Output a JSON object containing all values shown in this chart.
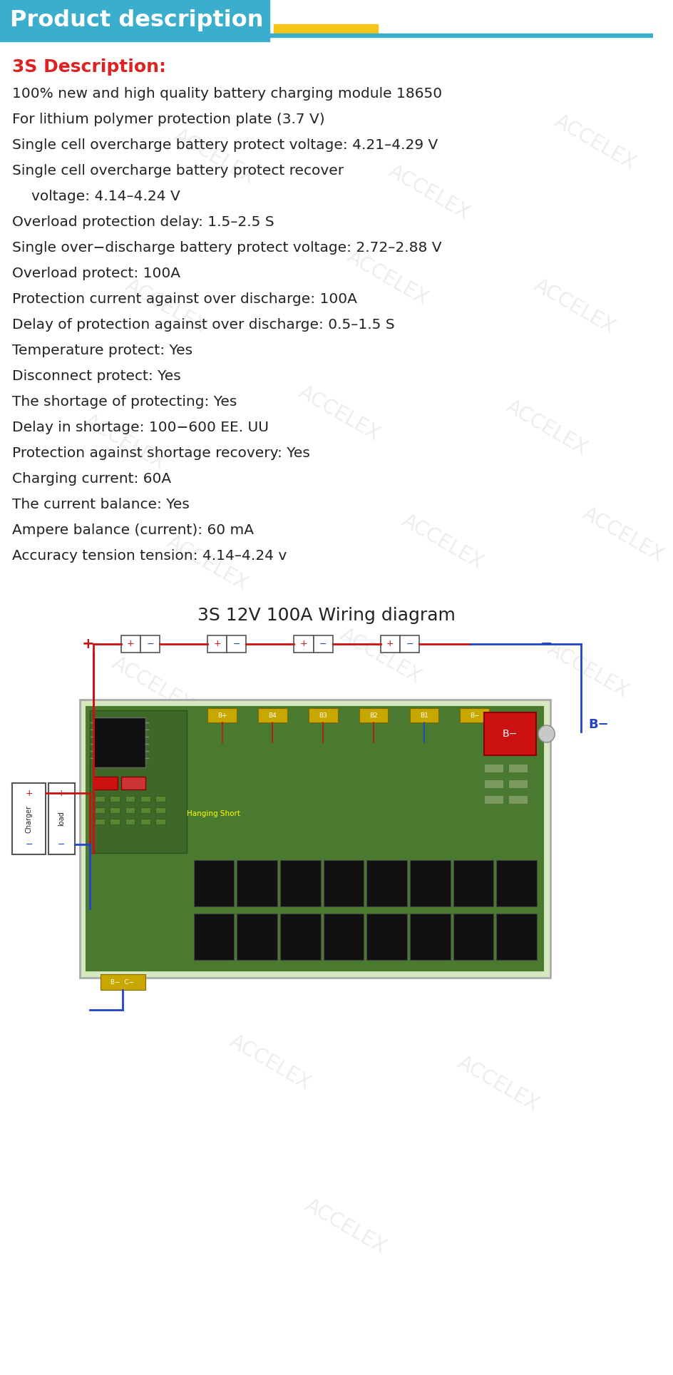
{
  "title_text": "Product description",
  "title_bg_color": "#3aaecc",
  "title_text_color": "#ffffff",
  "yellow_bar_color": "#f5c518",
  "blue_line_color": "#3aaecc",
  "section_title": "3S Description:",
  "section_title_color": "#dd2222",
  "description_lines": [
    "100% new and high quality battery charging module 18650",
    "For lithium polymer protection plate (3.7 V)",
    "Single cell overcharge battery protect voltage: 4.21–4.29 V",
    "Single cell overcharge battery protect recover",
    "voltage: 4.14–4.24 V",
    "Overload protection delay: 1.5–2.5 S",
    "Single over−discharge battery protect voltage: 2.72–2.88 V",
    "Overload protect: 100A",
    "Protection current against over discharge: 100A",
    "Delay of protection against over discharge: 0.5–1.5 S",
    "Temperature protect: Yes",
    "Disconnect protect: Yes",
    "The shortage of protecting: Yes",
    "Delay in shortage: 100−600 EE. UU",
    "Protection against shortage recovery: Yes",
    "Charging current: 60A",
    "The current balance: Yes",
    "Ampere balance (current): 60 mA",
    "Accuracy tension tension: 4.14–4.24 v"
  ],
  "text_color": "#222222",
  "bg_color": "#ffffff",
  "wiring_title": "3S 12V 100A Wiring diagram",
  "watermark_color": "#cccccc",
  "watermark_alpha": 0.35,
  "fig_w": 9.44,
  "fig_h": 19.28,
  "dpi": 100
}
